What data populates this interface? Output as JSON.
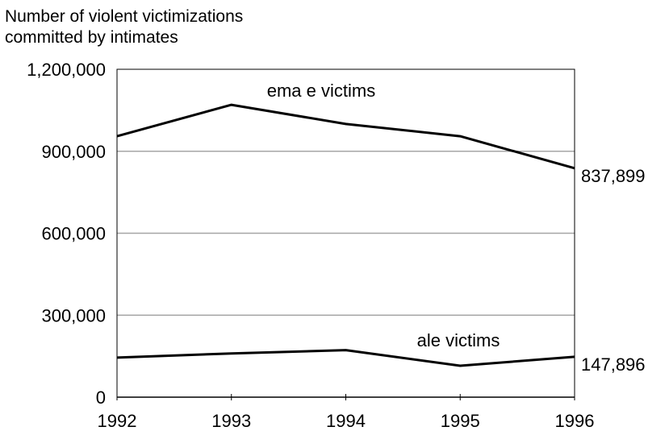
{
  "chart_data": {
    "type": "line",
    "title": "",
    "ylabel_lines": [
      "Number of violent victimizations",
      "committed by intimates"
    ],
    "xlabel": "",
    "categories": [
      "1992",
      "1993",
      "1994",
      "1995",
      "1996"
    ],
    "ylim": [
      0,
      1200000
    ],
    "yticks": [
      0,
      300000,
      600000,
      900000,
      1200000
    ],
    "ytick_labels": [
      "0",
      "300,000",
      "600,000",
      "900,000",
      "1,200,000"
    ],
    "grid": "horizontal",
    "series": [
      {
        "name": "ema e victims",
        "values": [
          955000,
          1070000,
          1000000,
          955000,
          837899
        ],
        "end_label": "837,899",
        "color": "#000000"
      },
      {
        "name": "ale victims",
        "values": [
          145000,
          160000,
          172000,
          115000,
          147896
        ],
        "end_label": "147,896",
        "color": "#000000"
      }
    ]
  }
}
